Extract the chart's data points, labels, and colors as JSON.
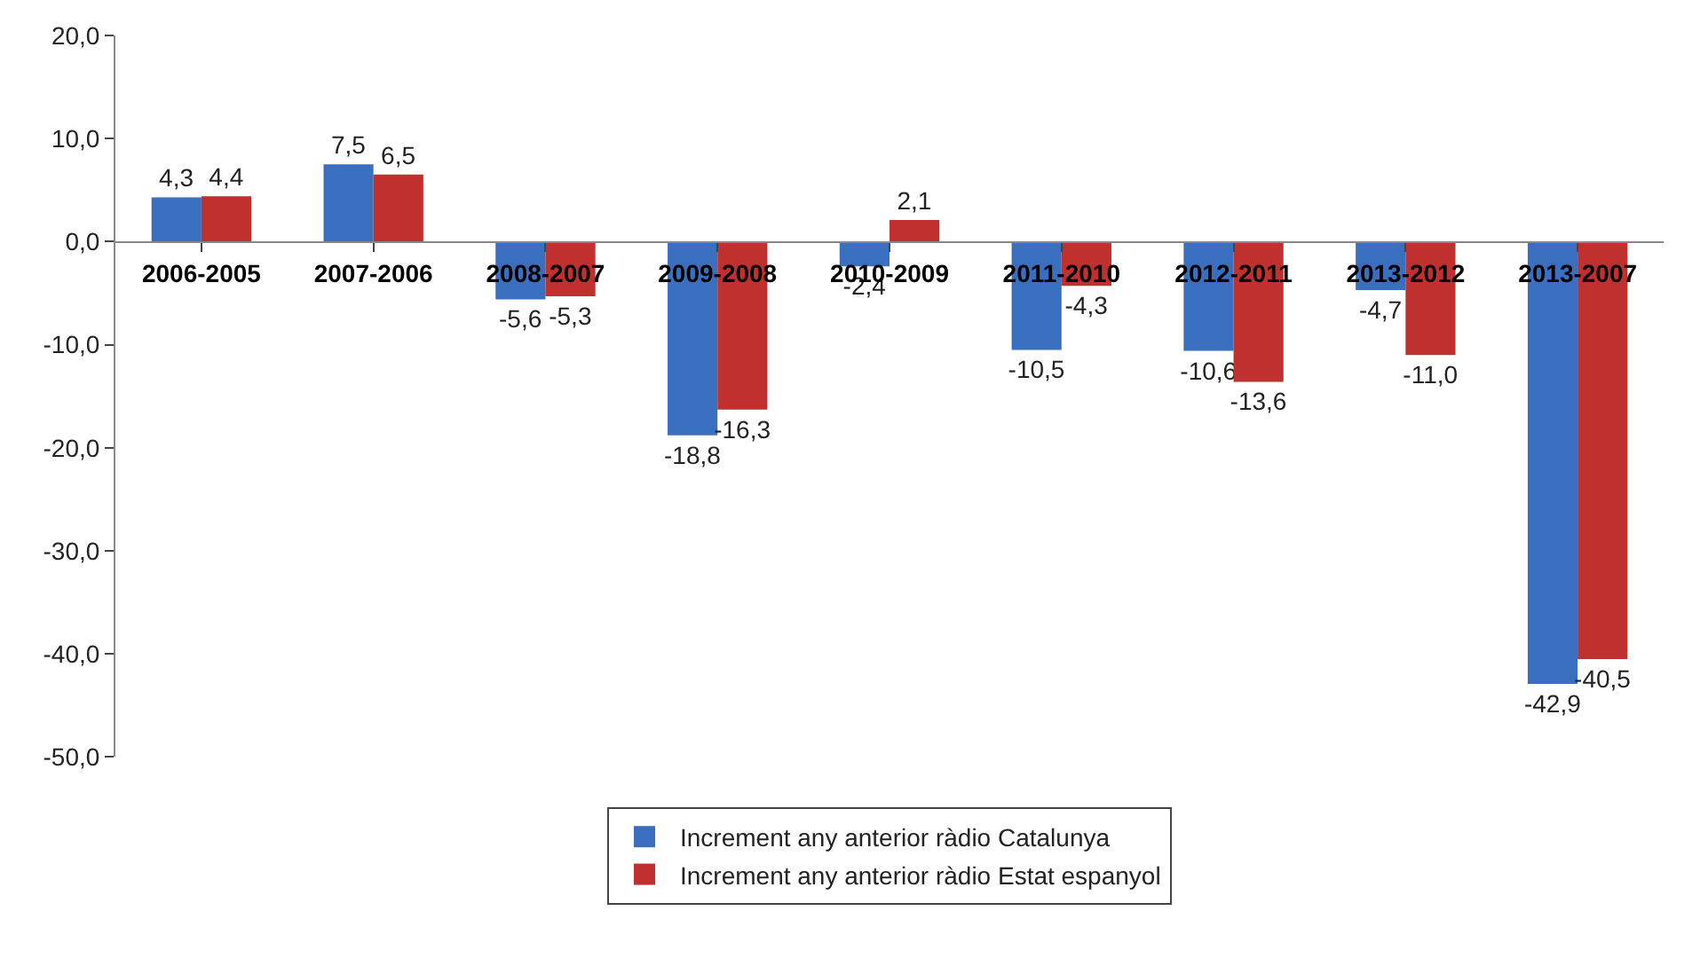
{
  "chart_data": {
    "type": "bar",
    "categories": [
      "2006-2005",
      "2007-2006",
      "2008-2007",
      "2009-2008",
      "2010-2009",
      "2011-2010",
      "2012-2011",
      "2013-2012",
      "2013-2007"
    ],
    "series": [
      {
        "name": "Increment any anterior ràdio Catalunya",
        "color": "#3a6fc0",
        "values": [
          4.3,
          7.5,
          -5.6,
          -18.8,
          -2.4,
          -10.5,
          -10.6,
          -4.7,
          -42.9
        ],
        "value_labels": [
          "4,3",
          "7,5",
          "-5,6",
          "-18,8",
          "-2,4",
          "-10,5",
          "-10,6",
          "-4,7",
          "-42,9"
        ]
      },
      {
        "name": "Increment any anterior ràdio Estat espanyol",
        "color": "#c0302e",
        "values": [
          4.4,
          6.5,
          -5.3,
          -16.3,
          2.1,
          -4.3,
          -13.6,
          -11.0,
          -40.5
        ],
        "value_labels": [
          "4,4",
          "6,5",
          "-5,3",
          "-16,3",
          "2,1",
          "-4,3",
          "-13,6",
          "-11,0",
          "-40,5"
        ]
      }
    ],
    "ylim": [
      -50,
      20
    ],
    "yticks": [
      {
        "value": 20,
        "label": "20,0"
      },
      {
        "value": 10,
        "label": "10,0"
      },
      {
        "value": 0,
        "label": "0,0"
      },
      {
        "value": -10,
        "label": "-10,0"
      },
      {
        "value": -20,
        "label": "-20,0"
      },
      {
        "value": -30,
        "label": "-30,0"
      },
      {
        "value": -40,
        "label": "-40,0"
      },
      {
        "value": -50,
        "label": "-50,0"
      }
    ],
    "legend": "bottom"
  }
}
